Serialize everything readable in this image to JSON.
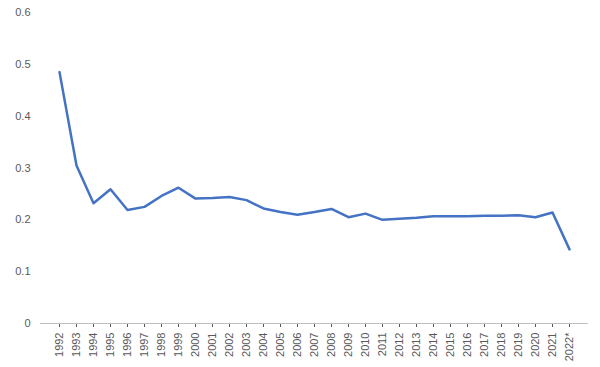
{
  "chart_data": {
    "type": "line",
    "categories": [
      "1992",
      "1993",
      "1994",
      "1995",
      "1996",
      "1997",
      "1998",
      "1999",
      "2000",
      "2001",
      "2002",
      "2003",
      "2004",
      "2005",
      "2006",
      "2007",
      "2008",
      "2009",
      "2010",
      "2011",
      "2012",
      "2013",
      "2014",
      "2015",
      "2016",
      "2017",
      "2018",
      "2019",
      "2020",
      "2021",
      "2022*"
    ],
    "values": [
      0.485,
      0.305,
      0.232,
      0.259,
      0.219,
      0.225,
      0.246,
      0.262,
      0.241,
      0.242,
      0.244,
      0.238,
      0.222,
      0.215,
      0.21,
      0.215,
      0.221,
      0.205,
      0.212,
      0.2,
      0.202,
      0.204,
      0.207,
      0.207,
      0.207,
      0.208,
      0.208,
      0.209,
      0.205,
      0.214,
      0.143
    ],
    "color": "#4472c4",
    "ylim": [
      0,
      0.6
    ],
    "yticks": [
      0,
      0.1,
      0.2,
      0.3,
      0.4,
      0.5,
      0.6
    ],
    "grid": false
  }
}
